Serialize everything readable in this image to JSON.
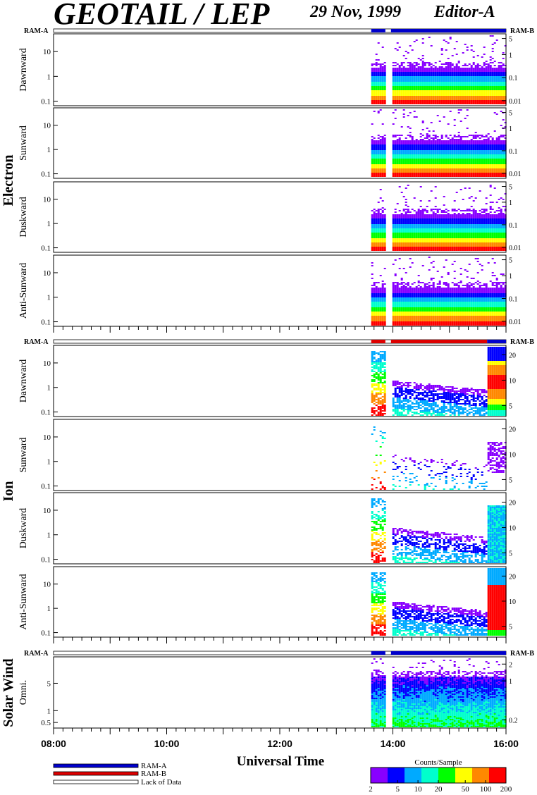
{
  "header": {
    "title": "GEOTAIL / LEP",
    "date": "29 Nov, 1999",
    "editor": "Editor-A"
  },
  "chart_data": {
    "type": "heatmap",
    "time_range": [
      "08:00",
      "16:00"
    ],
    "x_ticks": [
      "08:00",
      "10:00",
      "12:00",
      "14:00",
      "16:00"
    ],
    "xlabel": "Universal Time",
    "data_start": "13:37",
    "data_gap": [
      "13:52",
      "13:58"
    ],
    "groups": [
      {
        "name": "Electron",
        "ram_left": "RAM-A",
        "ram_right": "RAM-B",
        "ram_bar": [
          {
            "from": "08:00",
            "to": "13:37",
            "mode": "Lack of Data"
          },
          {
            "from": "13:37",
            "to": "13:52",
            "mode": "RAM-A"
          },
          {
            "from": "13:52",
            "to": "13:58",
            "mode": "Lack of Data"
          },
          {
            "from": "13:58",
            "to": "16:00",
            "mode": "RAM-A"
          }
        ],
        "panels": [
          {
            "label": "Dawnward",
            "left_ticks": [
              "0.1",
              "1",
              "10"
            ],
            "right_ticks": [
              "5",
              "1",
              "0.1",
              "0.01"
            ],
            "profile": "electron"
          },
          {
            "label": "Sunward",
            "left_ticks": [
              "0.1",
              "1",
              "10"
            ],
            "right_ticks": [
              "5",
              "1",
              "0.1",
              "0.01"
            ],
            "profile": "electron"
          },
          {
            "label": "Duskward",
            "left_ticks": [
              "0.1",
              "1",
              "10"
            ],
            "right_ticks": [
              "5",
              "1",
              "0.1",
              "0.01"
            ],
            "profile": "electron"
          },
          {
            "label": "Anti-Sunward",
            "left_ticks": [
              "0.1",
              "1",
              "10"
            ],
            "right_ticks": [
              "5",
              "1",
              "0.1",
              "0.01"
            ],
            "profile": "electron"
          }
        ]
      },
      {
        "name": "Ion",
        "ram_left": "RAM-A",
        "ram_right": "RAM-B",
        "ram_bar": [
          {
            "from": "08:00",
            "to": "13:37",
            "mode": "Lack of Data"
          },
          {
            "from": "13:37",
            "to": "13:52",
            "mode": "RAM-B"
          },
          {
            "from": "13:52",
            "to": "13:58",
            "mode": "Lack of Data"
          },
          {
            "from": "13:58",
            "to": "15:40",
            "mode": "RAM-B"
          },
          {
            "from": "15:40",
            "to": "16:00",
            "mode": "RAM-A"
          }
        ],
        "panels": [
          {
            "label": "Dawnward",
            "left_ticks": [
              "0.1",
              "1",
              "10"
            ],
            "right_ticks": [
              "20",
              "10",
              "5"
            ],
            "profile": "ion-strong"
          },
          {
            "label": "Sunward",
            "left_ticks": [
              "0.1",
              "1",
              "10"
            ],
            "right_ticks": [
              "20",
              "10",
              "5"
            ],
            "profile": "ion-sparse"
          },
          {
            "label": "Duskward",
            "left_ticks": [
              "0.1",
              "1",
              "10"
            ],
            "right_ticks": [
              "20",
              "10",
              "5"
            ],
            "profile": "ion-medium"
          },
          {
            "label": "Anti-Sunward",
            "left_ticks": [
              "0.1",
              "1",
              "10"
            ],
            "right_ticks": [
              "20",
              "10",
              "5"
            ],
            "profile": "ion-intense"
          }
        ]
      },
      {
        "name": "Solar Wind",
        "ram_left": "RAM-A",
        "ram_right": "RAM-B",
        "ram_bar": [
          {
            "from": "08:00",
            "to": "13:37",
            "mode": "Lack of Data"
          },
          {
            "from": "13:37",
            "to": "13:52",
            "mode": "RAM-A"
          },
          {
            "from": "13:52",
            "to": "13:58",
            "mode": "Lack of Data"
          },
          {
            "from": "13:58",
            "to": "16:00",
            "mode": "RAM-A"
          }
        ],
        "panels": [
          {
            "label": "Omni.",
            "left_ticks": [
              "0.5",
              "1",
              "5"
            ],
            "right_ticks": [
              "2",
              "1",
              "0.2"
            ],
            "profile": "solar"
          }
        ]
      }
    ],
    "legend": {
      "items": [
        {
          "label": "RAM-A",
          "color": "#0000cc"
        },
        {
          "label": "RAM-B",
          "color": "#dd0000"
        },
        {
          "label": "Lack of Data",
          "color": "#ffffff"
        }
      ]
    },
    "colorbar": {
      "title": "Counts/Sample",
      "ticks": [
        "2",
        "5",
        "10",
        "20",
        "50",
        "100",
        "200"
      ],
      "range": [
        2,
        200
      ],
      "scale": "log",
      "colors": [
        "#8800ff",
        "#0000ff",
        "#00aaff",
        "#00ffcc",
        "#00ff00",
        "#ffff00",
        "#ff8800",
        "#ff0000"
      ]
    }
  }
}
